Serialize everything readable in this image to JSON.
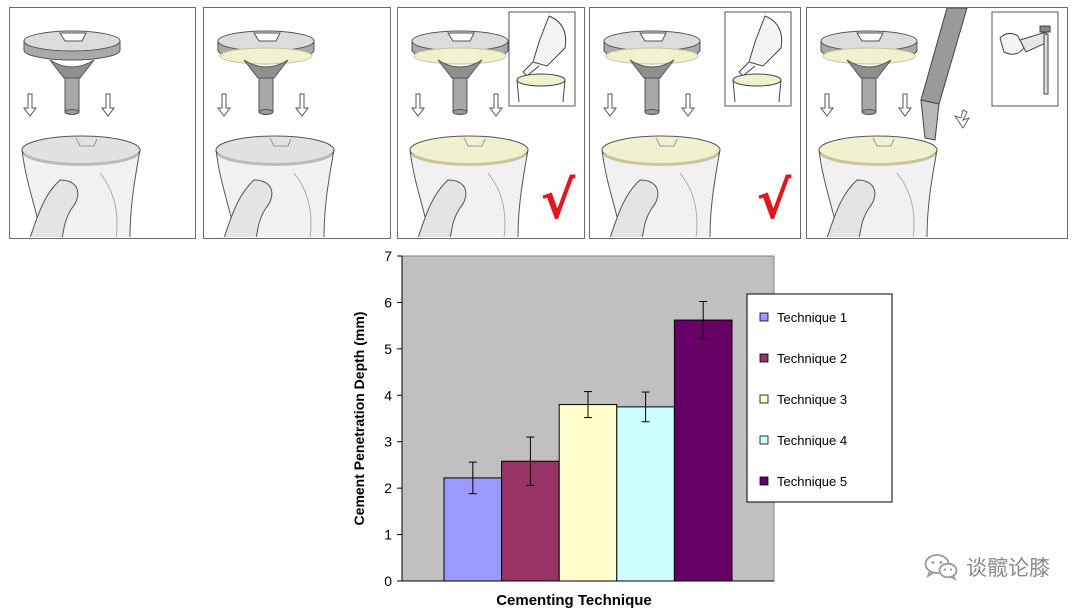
{
  "colors": {
    "technique_1": "#9999ff",
    "technique_2": "#993366",
    "technique_3": "#ffffcc",
    "technique_4": "#ccffff",
    "technique_5": "#660066",
    "plot_background": "#c0c0c0",
    "check_mark": "#e8131b",
    "cement": "#f2f1cf"
  },
  "figure": {
    "check_symbol": "√",
    "panels": [
      {
        "technique": "Technique 1",
        "cement_on_tray": false,
        "cement_on_tibia": false,
        "inset": "none",
        "checked": false
      },
      {
        "technique": "Technique 2",
        "cement_on_tray": true,
        "cement_on_tibia": false,
        "inset": "none",
        "checked": false
      },
      {
        "technique": "Technique 3",
        "cement_on_tray": true,
        "cement_on_tibia": true,
        "inset": "finger-press",
        "checked": true
      },
      {
        "technique": "Technique 4",
        "cement_on_tray": true,
        "cement_on_tibia": true,
        "inset": "finger-press",
        "checked": true
      },
      {
        "technique": "Technique 5",
        "cement_on_tray": true,
        "cement_on_tibia": true,
        "inset": "cement-gun",
        "checked": false
      }
    ]
  },
  "chart_data": {
    "type": "bar",
    "title": "",
    "xlabel": "Cementing Technique",
    "ylabel": "Cement Penetration Depth (mm)",
    "ylim": [
      0,
      7
    ],
    "yticks": [
      0,
      1,
      2,
      3,
      4,
      5,
      6,
      7
    ],
    "grid": false,
    "legend_position": "right",
    "categories": [
      "Technique 1",
      "Technique 2",
      "Technique 3",
      "Technique 4",
      "Technique 5"
    ],
    "values": [
      2.22,
      2.58,
      3.8,
      3.75,
      5.62
    ],
    "error": [
      0.34,
      0.52,
      0.28,
      0.32,
      0.4
    ]
  },
  "watermark": {
    "text": "谈髋论膝",
    "icon": "wechat-icon"
  }
}
